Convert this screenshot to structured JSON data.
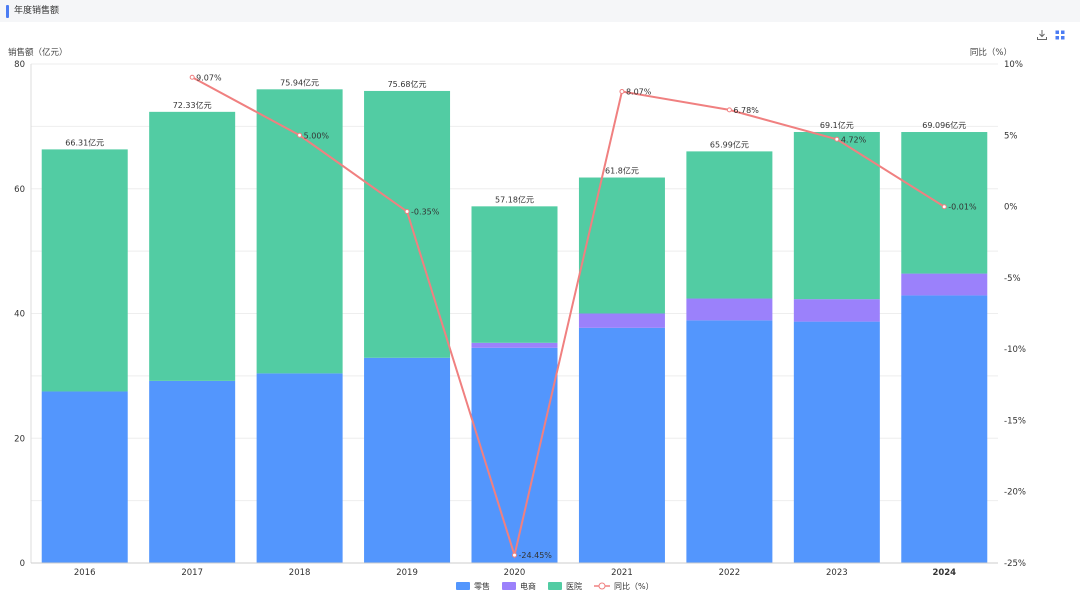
{
  "header": {
    "title": "年度销售额"
  },
  "toolbar": {
    "download_icon": "download-icon",
    "expand_icon": "fullscreen-icon"
  },
  "chart_data": {
    "type": "bar",
    "stacked": true,
    "categories": [
      "2016",
      "2017",
      "2018",
      "2019",
      "2020",
      "2021",
      "2022",
      "2023",
      "2024"
    ],
    "series": [
      {
        "name": "零售",
        "color": "#5396fd",
        "values": [
          27.5,
          29.2,
          30.4,
          32.9,
          34.5,
          37.7,
          38.9,
          38.7,
          42.9
        ]
      },
      {
        "name": "电商",
        "color": "#9b81fb",
        "values": [
          0,
          0,
          0,
          0,
          0.8,
          2.3,
          3.5,
          3.6,
          3.5
        ]
      },
      {
        "name": "医院",
        "color": "#52cca3",
        "values": [
          38.81,
          43.13,
          45.54,
          42.78,
          21.88,
          21.8,
          23.59,
          26.8,
          22.696
        ]
      }
    ],
    "bar_labels": [
      "66.31亿元",
      "72.33亿元",
      "75.94亿元",
      "75.68亿元",
      "57.18亿元",
      "61.8亿元",
      "65.99亿元",
      "69.1亿元",
      "69.096亿元"
    ],
    "line": {
      "name": "同比（%）",
      "color": "#f08080",
      "values": [
        null,
        9.07,
        5.0,
        -0.35,
        -24.45,
        8.07,
        6.78,
        4.72,
        -0.01
      ],
      "labels": [
        "",
        "9.07%",
        "5.00%",
        "-0.35%",
        "-24.45%",
        "8.07%",
        "6.78%",
        "4.72%",
        "-0.01%"
      ]
    },
    "ylabel": "销售额（亿元）",
    "y2label": "同比（%）",
    "ylim": [
      0,
      80
    ],
    "yticks": [
      0,
      20,
      40,
      60,
      80
    ],
    "y2lim": [
      -25,
      10
    ],
    "y2ticks": [
      10,
      5,
      0,
      -5,
      -10,
      -15,
      -20,
      -25
    ],
    "y2tick_labels": [
      "10%",
      "5%",
      "0%",
      "-5%",
      "-10%",
      "-15%",
      "-20%",
      "-25%"
    ],
    "grid": true,
    "legend_position": "bottom-center",
    "bold_category": "2024"
  }
}
